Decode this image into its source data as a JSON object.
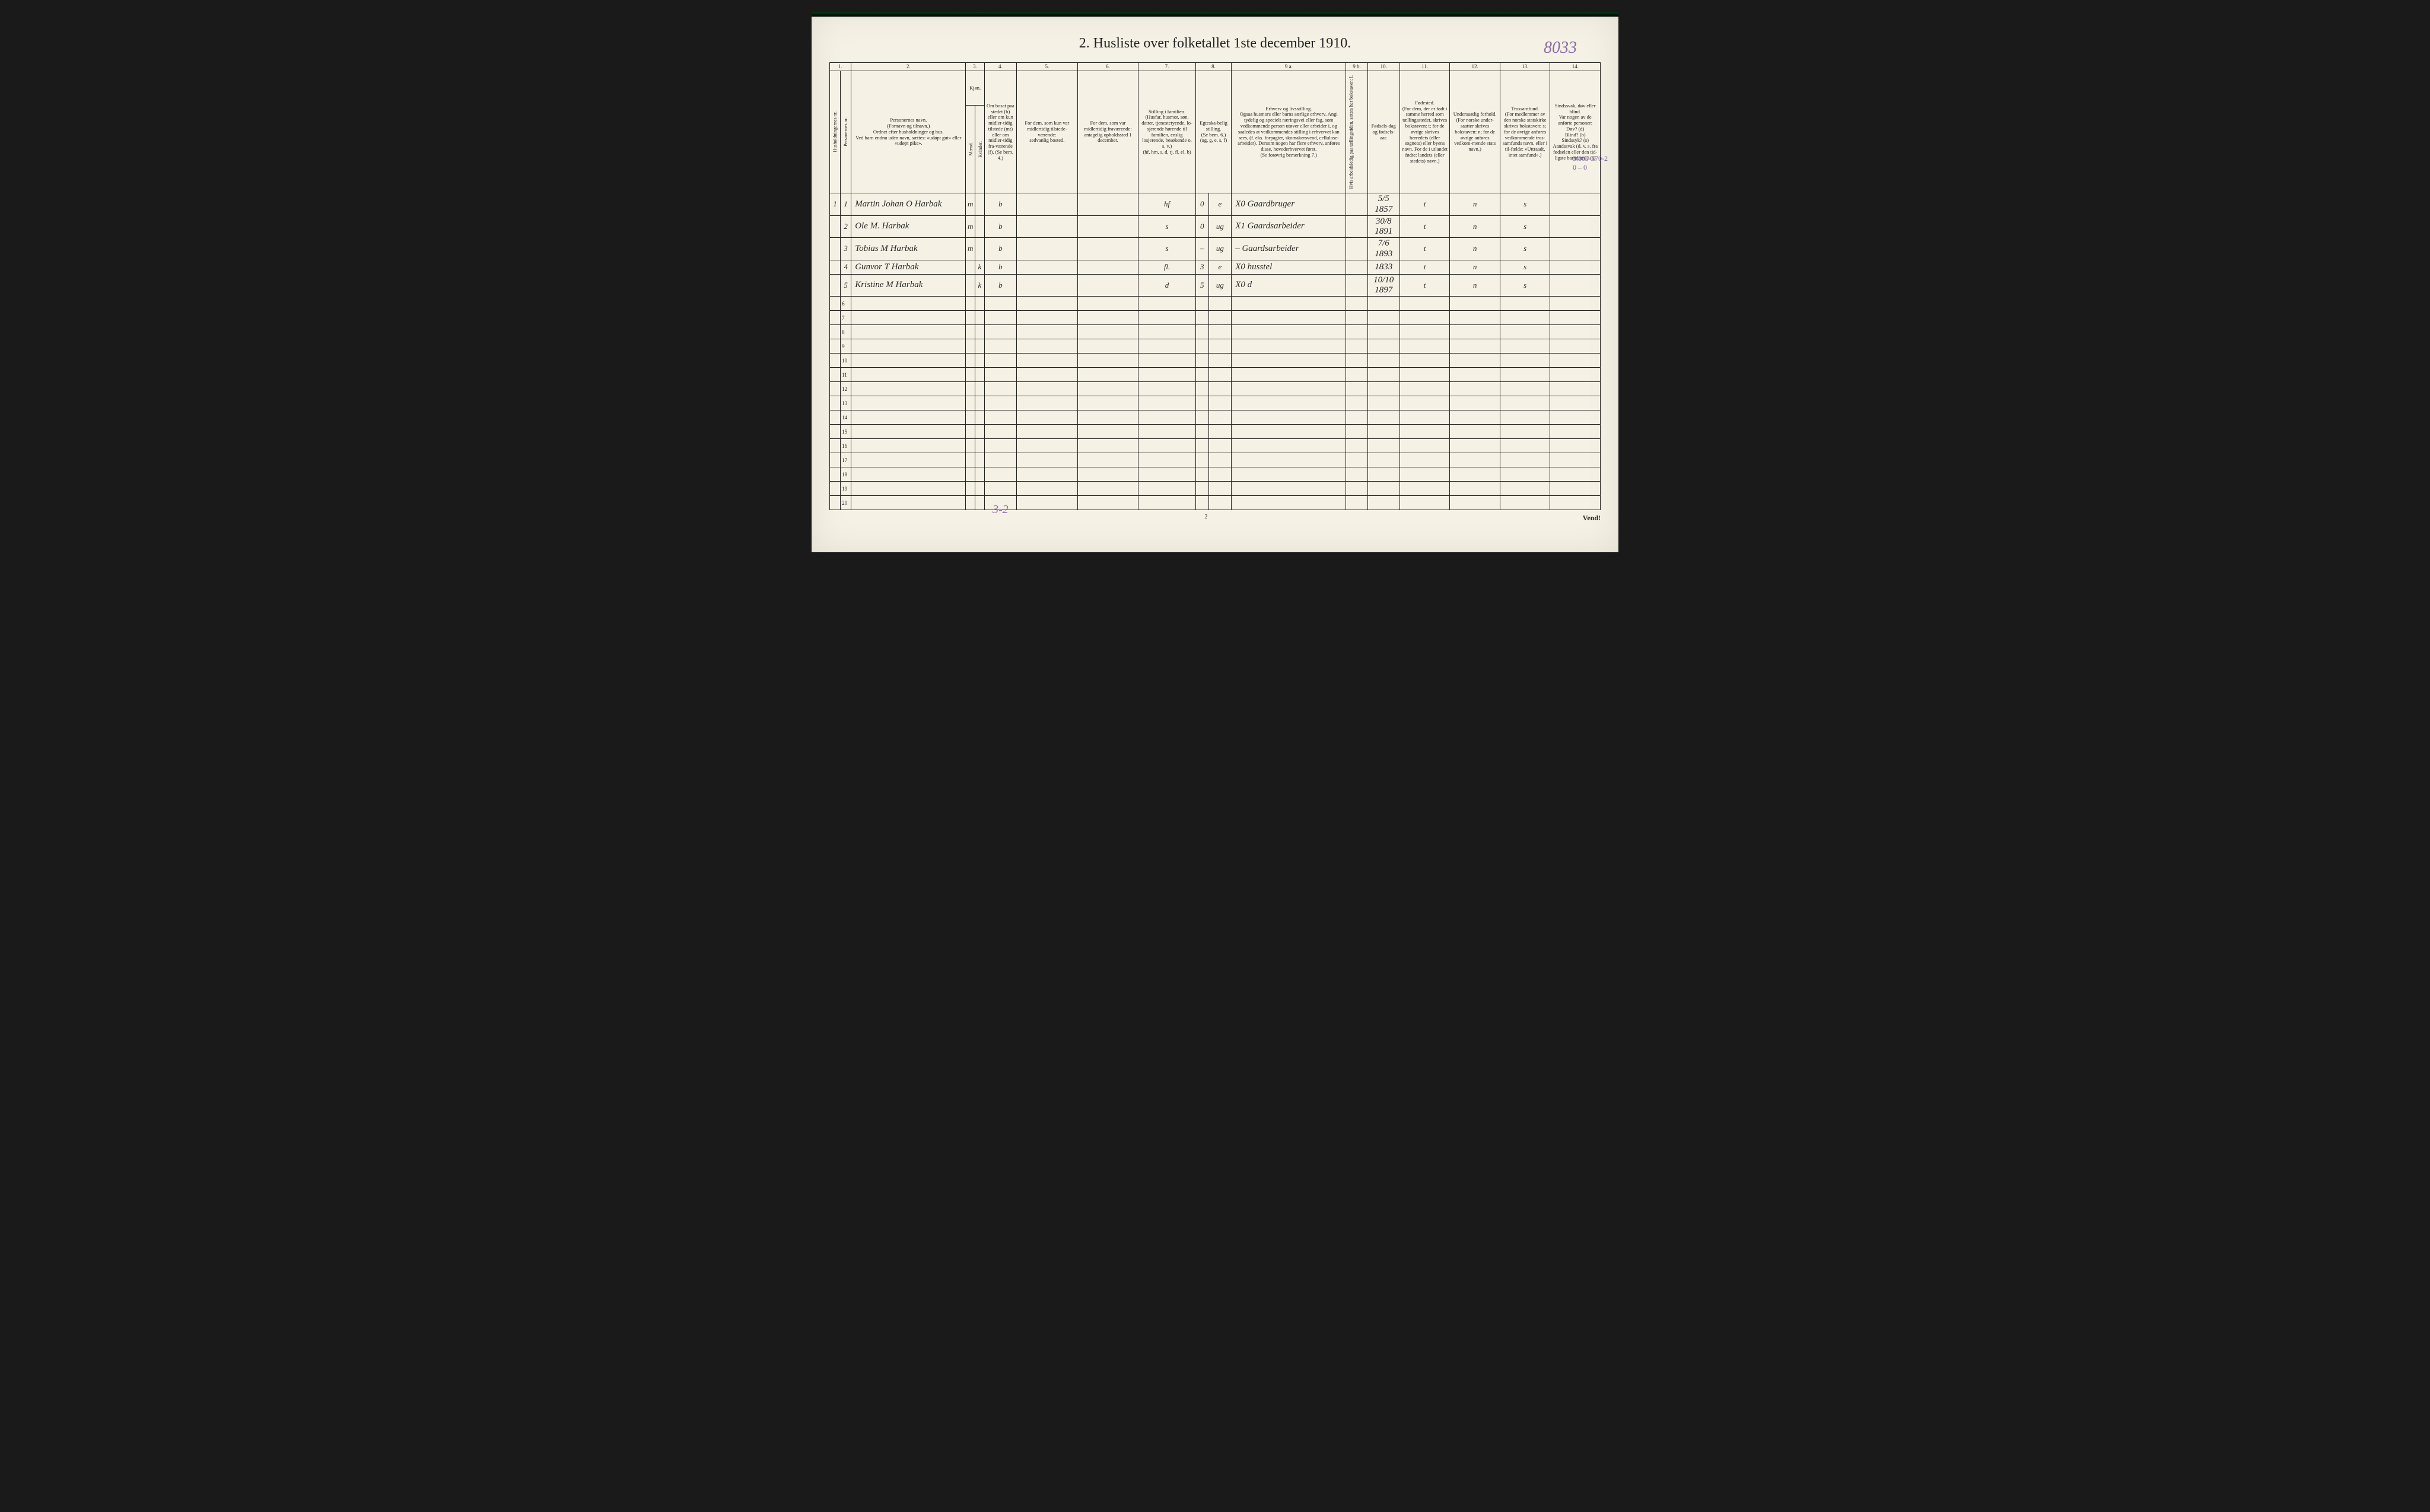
{
  "title": "2.  Husliste over folketallet 1ste december 1910.",
  "annotations": {
    "top_right": "8033",
    "below_table": "3-2",
    "margin_right": "3.800-570-2\n0 – 0"
  },
  "column_numbers": [
    "1.",
    "2.",
    "3.",
    "4.",
    "5.",
    "6.",
    "7.",
    "8.",
    "9 a.",
    "9 b.",
    "10.",
    "11.",
    "12.",
    "13.",
    "14."
  ],
  "headers": {
    "col1": "Husholdningernes nr.",
    "col1b": "Personernes nr.",
    "col2": "Personernes navn.\n(Fornavn og tilnavn.)\nOrdnet efter husholdninger og hus.\nVed barn endnu uden navn, sættes: «udøpt gut» eller «udøpt pike».",
    "col3": "Kjøn.",
    "col3m": "Mænd.",
    "col3k": "Kvinder.",
    "col3mk": "m.  k.",
    "col4": "Om bosat paa stedet (b) eller om kun midler-tidig tilstede (mt) eller om midler-tidig fra-værende (f). (Se bem. 4.)",
    "col5": "For dem, som kun var midlertidig tilstede-værende:\nsedvanlig bosted.",
    "col6": "For dem, som var midlertidig fraværende:\nantagelig opholdssted 1 december.",
    "col7": "Stilling i familien.\n(Husfar, husmor, søn, datter, tjenestetyende, lo-sjerende hørende til familien, enslig losjerende, besøkende o. s. v.)\n(hf, hm, s, d, tj, fl, el, b)",
    "col8": "Egteska-belig stilling.\n(Se bem. 6.)\n(ug, g, e, s, f)",
    "col9a": "Erhverv og livsstilling.\nOgsaa husmors eller barns særlige erhverv. Angi tydelig og specielt næringsvei eller fag, som vedkommende person utøver eller arbeider i, og saaledes at vedkommendes stilling i erhvervet kan sees, (f. eks. forpagter, skomakersvend, cellulose-arbeider). Dersom nogen har flere erhverv, anføres disse, hovederhvervet først.\n(Se forøvrig bemerkning 7.)",
    "col9b": "Hvis arbeidsledig paa tællingstiden, sættes her bokstaven: l.",
    "col10": "Fødsels-dag og fødsels-aar.",
    "col11": "Fødested.\n(For dem, der er født i samme herred som tællingsstedet, skrives bokstaven: t; for de øvrige skrives herredets (eller sognets) eller byens navn. For de i utlandet fødte: landets (eller stedets) navn.)",
    "col12": "Undersaatlig forhold.\n(For norske under-saatter skrives bokstaven: n; for de øvrige anføres vedkom-mende stats navn.)",
    "col13": "Trossamfund.\n(For medlemmer av den norske statskirke skrives bokstaven: s; for de øvrige anføres vedkommende tros-samfunds navn, eller i til-fælde: «Uttraadt, intet samfund».)",
    "col14": "Sindssvak, døv eller blind.\nVar nogen av de anførte personer:\nDøv?      (d)\nBlind?     (b)\nSindssyk? (s)\nAandssvak (d. v. s. fra fødselen eller den tid-ligste barndom)? (a)"
  },
  "rows": [
    {
      "hh": "1",
      "pn": "1",
      "name": "Martin Johan O Harbak",
      "sex": "m",
      "res": "b",
      "col5": "",
      "col6": "",
      "fam": "hf",
      "col8a": "0",
      "mar": "e",
      "occ": "X0 Gaardbruger",
      "led": "",
      "birth": "5/5 1857",
      "place": "t",
      "nat": "n",
      "rel": "s",
      "dis": ""
    },
    {
      "hh": "",
      "pn": "2",
      "name": "Ole M. Harbak",
      "sex": "m",
      "res": "b",
      "col5": "",
      "col6": "",
      "fam": "s",
      "col8a": "0",
      "mar": "ug",
      "occ": "X1 Gaardsarbeider",
      "led": "",
      "birth": "30/8 1891",
      "place": "t",
      "nat": "n",
      "rel": "s",
      "dis": ""
    },
    {
      "hh": "",
      "pn": "3",
      "name": "Tobias M Harbak",
      "sex": "m",
      "res": "b",
      "col5": "",
      "col6": "",
      "fam": "s",
      "col8a": "–",
      "mar": "ug",
      "occ": "– Gaardsarbeider",
      "led": "",
      "birth": "7/6 1893",
      "place": "t",
      "nat": "n",
      "rel": "s",
      "dis": ""
    },
    {
      "hh": "",
      "pn": "4",
      "name": "Gunvor T Harbak",
      "sex": "k",
      "res": "b",
      "col5": "",
      "col6": "",
      "fam": "fl.",
      "col8a": "3",
      "mar": "e",
      "occ": "X0  husstel",
      "led": "",
      "birth": "1833",
      "place": "t",
      "nat": "n",
      "rel": "s",
      "dis": ""
    },
    {
      "hh": "",
      "pn": "5",
      "name": "Kristine M Harbak",
      "sex": "k",
      "res": "b",
      "col5": "",
      "col6": "",
      "fam": "d",
      "col8a": "5",
      "mar": "ug",
      "occ": "X0   d",
      "led": "",
      "birth": "10/10 1897",
      "place": "t",
      "nat": "n",
      "rel": "s",
      "dis": ""
    }
  ],
  "empty_row_nums": [
    "6",
    "7",
    "8",
    "9",
    "10",
    "11",
    "12",
    "13",
    "14",
    "15",
    "16",
    "17",
    "18",
    "19",
    "20"
  ],
  "footer": {
    "page_num": "2",
    "vend": "Vend!"
  },
  "colors": {
    "paper": "#f5f1e4",
    "ink": "#222222",
    "pencil": "#8a6aa8",
    "black_border": "#1a1a1a"
  },
  "col_widths_pct": [
    1.5,
    1.5,
    16,
    1.3,
    1.3,
    4.5,
    8.5,
    8.5,
    8,
    1.8,
    3.2,
    16,
    3,
    4.5,
    7,
    7,
    7,
    7
  ]
}
